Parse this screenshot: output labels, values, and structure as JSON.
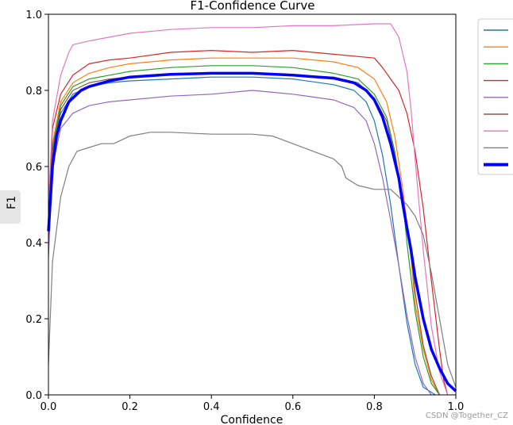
{
  "chart_data": {
    "type": "line",
    "title": "F1-Confidence Curve",
    "xlabel": "Confidence",
    "ylabel": "F1",
    "xlim": [
      0.0,
      1.0
    ],
    "ylim": [
      0.0,
      1.0
    ],
    "x_ticks": [
      "0.0",
      "0.2",
      "0.4",
      "0.6",
      "0.8",
      "1.0"
    ],
    "y_ticks": [
      "0.0",
      "0.2",
      "0.4",
      "0.6",
      "0.8",
      "1.0"
    ],
    "grid": false,
    "legend_position": "upper right, outside plot",
    "series": [
      {
        "color": "#1f77b4",
        "width": 1.2,
        "points": [
          [
            0,
            0.42
          ],
          [
            0.01,
            0.64
          ],
          [
            0.03,
            0.74
          ],
          [
            0.06,
            0.79
          ],
          [
            0.1,
            0.81
          ],
          [
            0.15,
            0.82
          ],
          [
            0.2,
            0.825
          ],
          [
            0.3,
            0.83
          ],
          [
            0.4,
            0.835
          ],
          [
            0.5,
            0.835
          ],
          [
            0.6,
            0.83
          ],
          [
            0.7,
            0.815
          ],
          [
            0.75,
            0.8
          ],
          [
            0.78,
            0.77
          ],
          [
            0.8,
            0.72
          ],
          [
            0.82,
            0.63
          ],
          [
            0.84,
            0.5
          ],
          [
            0.86,
            0.34
          ],
          [
            0.88,
            0.19
          ],
          [
            0.9,
            0.08
          ],
          [
            0.92,
            0.02
          ],
          [
            0.95,
            0.0
          ]
        ]
      },
      {
        "color": "#ff7f0e",
        "width": 1.2,
        "points": [
          [
            0,
            0.42
          ],
          [
            0.01,
            0.66
          ],
          [
            0.03,
            0.77
          ],
          [
            0.06,
            0.82
          ],
          [
            0.1,
            0.845
          ],
          [
            0.15,
            0.86
          ],
          [
            0.2,
            0.87
          ],
          [
            0.3,
            0.88
          ],
          [
            0.4,
            0.885
          ],
          [
            0.5,
            0.885
          ],
          [
            0.6,
            0.885
          ],
          [
            0.7,
            0.875
          ],
          [
            0.76,
            0.86
          ],
          [
            0.8,
            0.83
          ],
          [
            0.83,
            0.77
          ],
          [
            0.85,
            0.68
          ],
          [
            0.87,
            0.54
          ],
          [
            0.89,
            0.36
          ],
          [
            0.9,
            0.24
          ],
          [
            0.92,
            0.12
          ],
          [
            0.94,
            0.04
          ],
          [
            0.96,
            0.0
          ]
        ]
      },
      {
        "color": "#2ca02c",
        "width": 1.2,
        "points": [
          [
            0,
            0.42
          ],
          [
            0.01,
            0.65
          ],
          [
            0.03,
            0.76
          ],
          [
            0.06,
            0.81
          ],
          [
            0.1,
            0.83
          ],
          [
            0.15,
            0.84
          ],
          [
            0.2,
            0.85
          ],
          [
            0.3,
            0.86
          ],
          [
            0.4,
            0.865
          ],
          [
            0.5,
            0.865
          ],
          [
            0.6,
            0.86
          ],
          [
            0.7,
            0.845
          ],
          [
            0.76,
            0.83
          ],
          [
            0.8,
            0.79
          ],
          [
            0.83,
            0.73
          ],
          [
            0.85,
            0.64
          ],
          [
            0.87,
            0.51
          ],
          [
            0.88,
            0.4
          ],
          [
            0.9,
            0.22
          ],
          [
            0.92,
            0.1
          ],
          [
            0.94,
            0.03
          ],
          [
            0.96,
            0.0
          ]
        ]
      },
      {
        "color": "#d62728",
        "width": 1.2,
        "points": [
          [
            0,
            0.45
          ],
          [
            0.01,
            0.7
          ],
          [
            0.03,
            0.79
          ],
          [
            0.06,
            0.84
          ],
          [
            0.1,
            0.87
          ],
          [
            0.15,
            0.88
          ],
          [
            0.2,
            0.885
          ],
          [
            0.3,
            0.9
          ],
          [
            0.4,
            0.905
          ],
          [
            0.5,
            0.9
          ],
          [
            0.6,
            0.905
          ],
          [
            0.7,
            0.895
          ],
          [
            0.8,
            0.885
          ],
          [
            0.82,
            0.86
          ],
          [
            0.84,
            0.83
          ],
          [
            0.86,
            0.8
          ],
          [
            0.88,
            0.74
          ],
          [
            0.9,
            0.64
          ],
          [
            0.92,
            0.49
          ],
          [
            0.94,
            0.3
          ],
          [
            0.96,
            0.12
          ],
          [
            0.97,
            0.04
          ],
          [
            0.98,
            0.0
          ]
        ]
      },
      {
        "color": "#9467bd",
        "width": 1.2,
        "points": [
          [
            0,
            0.36
          ],
          [
            0.01,
            0.6
          ],
          [
            0.03,
            0.7
          ],
          [
            0.06,
            0.74
          ],
          [
            0.1,
            0.76
          ],
          [
            0.15,
            0.77
          ],
          [
            0.2,
            0.775
          ],
          [
            0.3,
            0.785
          ],
          [
            0.4,
            0.79
          ],
          [
            0.5,
            0.8
          ],
          [
            0.55,
            0.795
          ],
          [
            0.6,
            0.79
          ],
          [
            0.7,
            0.775
          ],
          [
            0.75,
            0.755
          ],
          [
            0.78,
            0.72
          ],
          [
            0.8,
            0.66
          ],
          [
            0.82,
            0.57
          ],
          [
            0.84,
            0.46
          ],
          [
            0.86,
            0.34
          ],
          [
            0.88,
            0.21
          ],
          [
            0.9,
            0.1
          ],
          [
            0.92,
            0.03
          ],
          [
            0.94,
            0.0
          ]
        ]
      },
      {
        "color": "#8c564b",
        "width": 1.2,
        "points": [
          [
            0,
            0.42
          ],
          [
            0.01,
            0.64
          ],
          [
            0.03,
            0.75
          ],
          [
            0.06,
            0.8
          ],
          [
            0.1,
            0.82
          ],
          [
            0.15,
            0.83
          ],
          [
            0.2,
            0.835
          ],
          [
            0.3,
            0.84
          ],
          [
            0.4,
            0.845
          ],
          [
            0.5,
            0.845
          ],
          [
            0.6,
            0.84
          ],
          [
            0.7,
            0.835
          ],
          [
            0.76,
            0.82
          ],
          [
            0.8,
            0.78
          ],
          [
            0.83,
            0.72
          ],
          [
            0.85,
            0.63
          ],
          [
            0.87,
            0.52
          ],
          [
            0.89,
            0.38
          ],
          [
            0.9,
            0.27
          ],
          [
            0.92,
            0.13
          ],
          [
            0.94,
            0.05
          ],
          [
            0.96,
            0.0
          ]
        ]
      },
      {
        "color": "#e377c2",
        "width": 1.2,
        "points": [
          [
            0,
            0.5
          ],
          [
            0.01,
            0.72
          ],
          [
            0.03,
            0.84
          ],
          [
            0.05,
            0.9
          ],
          [
            0.06,
            0.92
          ],
          [
            0.1,
            0.93
          ],
          [
            0.2,
            0.95
          ],
          [
            0.3,
            0.96
          ],
          [
            0.4,
            0.965
          ],
          [
            0.5,
            0.965
          ],
          [
            0.6,
            0.97
          ],
          [
            0.7,
            0.97
          ],
          [
            0.8,
            0.975
          ],
          [
            0.84,
            0.975
          ],
          [
            0.86,
            0.94
          ],
          [
            0.88,
            0.85
          ],
          [
            0.89,
            0.75
          ],
          [
            0.9,
            0.62
          ],
          [
            0.91,
            0.5
          ],
          [
            0.92,
            0.38
          ],
          [
            0.94,
            0.18
          ],
          [
            0.96,
            0.06
          ],
          [
            0.98,
            0.0
          ]
        ]
      },
      {
        "color": "#7f7f7f",
        "width": 1.2,
        "points": [
          [
            0,
            0.08
          ],
          [
            0.01,
            0.35
          ],
          [
            0.03,
            0.52
          ],
          [
            0.05,
            0.6
          ],
          [
            0.07,
            0.64
          ],
          [
            0.1,
            0.65
          ],
          [
            0.13,
            0.66
          ],
          [
            0.16,
            0.66
          ],
          [
            0.2,
            0.68
          ],
          [
            0.25,
            0.69
          ],
          [
            0.3,
            0.69
          ],
          [
            0.4,
            0.685
          ],
          [
            0.5,
            0.685
          ],
          [
            0.55,
            0.68
          ],
          [
            0.6,
            0.66
          ],
          [
            0.65,
            0.64
          ],
          [
            0.7,
            0.62
          ],
          [
            0.72,
            0.6
          ],
          [
            0.73,
            0.57
          ],
          [
            0.76,
            0.55
          ],
          [
            0.8,
            0.54
          ],
          [
            0.84,
            0.54
          ],
          [
            0.86,
            0.52
          ],
          [
            0.88,
            0.5
          ],
          [
            0.9,
            0.47
          ],
          [
            0.92,
            0.42
          ],
          [
            0.94,
            0.32
          ],
          [
            0.96,
            0.2
          ],
          [
            0.98,
            0.08
          ],
          [
            1.0,
            0.02
          ]
        ]
      },
      {
        "color": "#0000ff",
        "width": 3.5,
        "points": [
          [
            0,
            0.43
          ],
          [
            0.01,
            0.6
          ],
          [
            0.02,
            0.68
          ],
          [
            0.03,
            0.72
          ],
          [
            0.05,
            0.77
          ],
          [
            0.08,
            0.8
          ],
          [
            0.1,
            0.81
          ],
          [
            0.15,
            0.825
          ],
          [
            0.2,
            0.835
          ],
          [
            0.3,
            0.842
          ],
          [
            0.4,
            0.845
          ],
          [
            0.5,
            0.845
          ],
          [
            0.6,
            0.84
          ],
          [
            0.7,
            0.832
          ],
          [
            0.75,
            0.82
          ],
          [
            0.78,
            0.8
          ],
          [
            0.8,
            0.775
          ],
          [
            0.82,
            0.73
          ],
          [
            0.84,
            0.66
          ],
          [
            0.86,
            0.57
          ],
          [
            0.87,
            0.5
          ],
          [
            0.88,
            0.44
          ],
          [
            0.89,
            0.38
          ],
          [
            0.9,
            0.31
          ],
          [
            0.92,
            0.2
          ],
          [
            0.94,
            0.12
          ],
          [
            0.96,
            0.07
          ],
          [
            0.98,
            0.03
          ],
          [
            1.0,
            0.01
          ]
        ]
      }
    ]
  },
  "legend": {
    "entries": [
      {
        "color": "#1f77b4",
        "label": ""
      },
      {
        "color": "#ff7f0e",
        "label": ""
      },
      {
        "color": "#2ca02c",
        "label": ""
      },
      {
        "color": "#d62728",
        "label": ""
      },
      {
        "color": "#9467bd",
        "label": ""
      },
      {
        "color": "#8c564b",
        "label": ""
      },
      {
        "color": "#e377c2",
        "label": ""
      },
      {
        "color": "#7f7f7f",
        "label": ""
      },
      {
        "color": "#0000ff",
        "label": ""
      }
    ]
  },
  "watermark": "CSDN @Together_CZ"
}
